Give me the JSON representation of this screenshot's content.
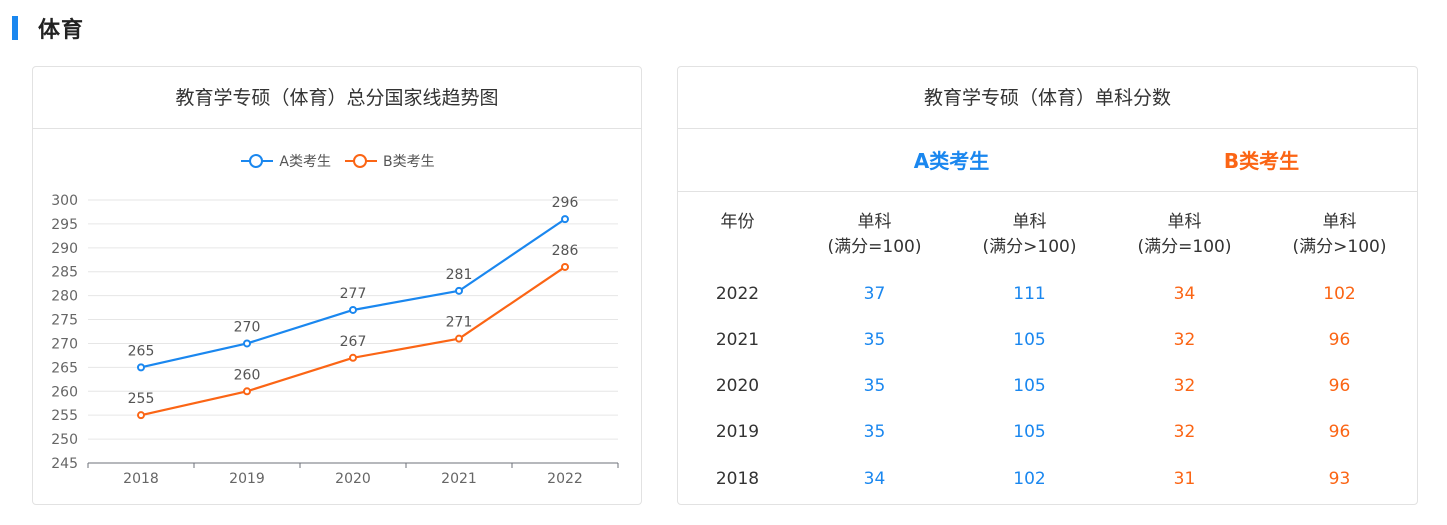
{
  "section": {
    "title": "体育"
  },
  "chart_card": {
    "title": "教育学专硕（体育）总分国家线趋势图"
  },
  "chart_data": {
    "type": "line",
    "title": "教育学专硕（体育）总分国家线趋势图",
    "categories": [
      "2018",
      "2019",
      "2020",
      "2021",
      "2022"
    ],
    "series": [
      {
        "name": "A类考生",
        "color": "#1a87ef",
        "values": [
          265,
          270,
          277,
          281,
          296
        ]
      },
      {
        "name": "B类考生",
        "color": "#fb6515",
        "values": [
          255,
          260,
          267,
          271,
          286
        ]
      }
    ],
    "ylim": [
      245,
      300
    ],
    "yticks": [
      245,
      250,
      255,
      260,
      265,
      270,
      275,
      280,
      285,
      290,
      295,
      300
    ],
    "xlabel": "",
    "ylabel": "",
    "grid": true,
    "legend": "top-center"
  },
  "table_card": {
    "title": "教育学专硕（体育）单科分数",
    "group_a": "A类考生",
    "group_b": "B类考生",
    "headers": [
      "年份",
      "单科\n(满分=100)",
      "单科\n(满分>100)",
      "单科\n(满分=100)",
      "单科\n(满分>100)"
    ],
    "rows": [
      [
        "2022",
        "37",
        "111",
        "34",
        "102"
      ],
      [
        "2021",
        "35",
        "105",
        "32",
        "96"
      ],
      [
        "2020",
        "35",
        "105",
        "32",
        "96"
      ],
      [
        "2019",
        "35",
        "105",
        "32",
        "96"
      ],
      [
        "2018",
        "34",
        "102",
        "31",
        "93"
      ]
    ]
  },
  "colors": {
    "accent": "#1a87ef",
    "series_a": "#1a87ef",
    "series_b": "#fb6515"
  }
}
